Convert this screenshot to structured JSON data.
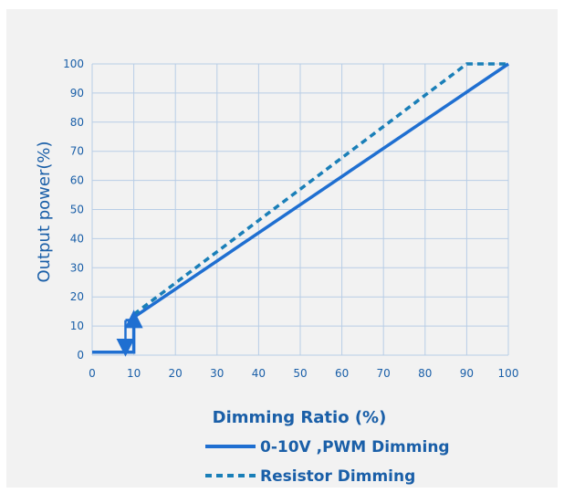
{
  "chart_data": {
    "type": "line",
    "title": "",
    "xlabel": "Dimming Ratio (%)",
    "ylabel": "Output power(%)",
    "xlim": [
      0,
      100
    ],
    "ylim": [
      0,
      100
    ],
    "x_ticks": [
      0,
      10,
      20,
      30,
      40,
      50,
      60,
      70,
      80,
      90,
      100
    ],
    "y_ticks": [
      0,
      10,
      20,
      30,
      40,
      50,
      60,
      70,
      80,
      90,
      100
    ],
    "x_tick_labels": [
      "0",
      "10",
      "20",
      "30",
      "40",
      "50",
      "60",
      "70",
      "80",
      "90",
      "100"
    ],
    "y_tick_labels": [
      "0",
      "10",
      "20",
      "30",
      "40",
      "50",
      "60",
      "70",
      "80",
      "90",
      "100"
    ],
    "grid": true,
    "legend_position": "bottom",
    "series": [
      {
        "name": "0-10V ,PWM Dimming",
        "style": "solid",
        "color": "#1f6fd1",
        "points": [
          [
            0,
            1
          ],
          [
            10,
            1
          ],
          [
            10,
            13
          ],
          [
            100,
            100
          ]
        ]
      },
      {
        "name": "Resistor Dimming",
        "style": "dashed",
        "color": "#1a7fb8",
        "points": [
          [
            10,
            14
          ],
          [
            90,
            100
          ],
          [
            100,
            100
          ]
        ]
      }
    ],
    "hysteresis": {
      "down_arrow": {
        "x": 8,
        "from": 12,
        "to": 1
      },
      "up_arrow": {
        "x": 10,
        "from": 1,
        "to": 14
      },
      "connector": {
        "from": [
          8,
          12
        ],
        "to": [
          10,
          12
        ]
      },
      "color": "#1f6fd1"
    }
  }
}
